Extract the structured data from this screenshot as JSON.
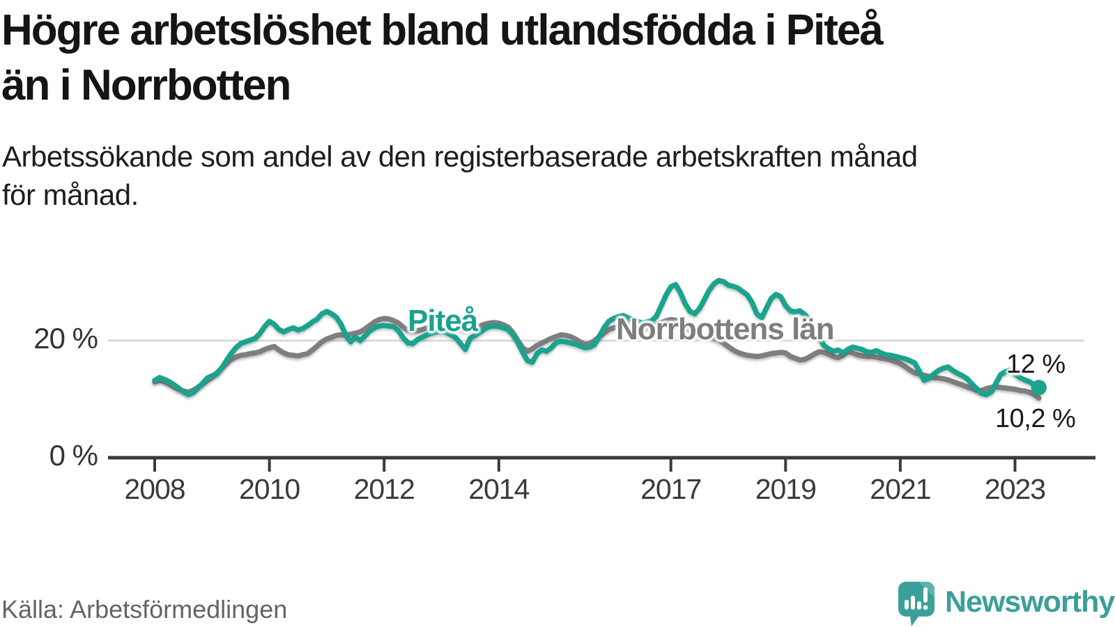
{
  "header": {
    "title_line1": "Högre arbetslöshet bland utlandsfödda i Piteå",
    "title_line2": "än i Norrbotten",
    "subtitle_line1": "Arbetssökande som andel av den registerbaserade arbetskraften månad",
    "subtitle_line2": "för månad."
  },
  "chart_data": {
    "type": "line",
    "title": "Högre arbetslöshet bland utlandsfödda i Piteå än i Norrbotten",
    "subtitle": "Arbetssökande som andel av den registerbaserade arbetskraften månad för månad.",
    "x_unit": "month",
    "x_start": "2008-01",
    "x_end": "2023-06",
    "ylim": [
      0,
      34
    ],
    "grid": "single-line-at-20",
    "yticks": [
      {
        "value": 0,
        "label": "0 %"
      },
      {
        "value": 20,
        "label": "20 %"
      }
    ],
    "xticks": [
      {
        "year": 2008,
        "label": "2008"
      },
      {
        "year": 2010,
        "label": "2010"
      },
      {
        "year": 2012,
        "label": "2012"
      },
      {
        "year": 2014,
        "label": "2014"
      },
      {
        "year": 2017,
        "label": "2017"
      },
      {
        "year": 2019,
        "label": "2019"
      },
      {
        "year": 2021,
        "label": "2021"
      },
      {
        "year": 2023,
        "label": "2023"
      }
    ],
    "series": [
      {
        "name": "Norrbottens län",
        "color": "#7E7E7E",
        "end_value_label": "10,2 %",
        "values": [
          13.0,
          13.2,
          13.0,
          12.6,
          12.1,
          11.7,
          11.4,
          11.2,
          11.5,
          12.0,
          12.6,
          13.2,
          13.8,
          14.5,
          15.3,
          16.1,
          16.8,
          17.2,
          17.5,
          17.6,
          17.8,
          17.9,
          18.1,
          18.5,
          18.8,
          19.0,
          18.4,
          17.9,
          17.6,
          17.5,
          17.4,
          17.6,
          17.8,
          18.4,
          19.1,
          19.8,
          20.3,
          20.6,
          20.9,
          21.0,
          21.0,
          21.1,
          21.3,
          21.5,
          22.0,
          22.6,
          23.2,
          23.6,
          23.8,
          23.7,
          23.4,
          23.0,
          22.3,
          21.8,
          21.6,
          21.7,
          21.9,
          22.2,
          22.4,
          22.6,
          22.8,
          22.9,
          22.7,
          22.4,
          22.1,
          21.8,
          21.9,
          22.2,
          22.5,
          22.8,
          23.0,
          23.1,
          23.0,
          22.7,
          22.3,
          21.3,
          20.0,
          18.8,
          18.2,
          18.6,
          19.2,
          19.6,
          20.0,
          20.4,
          20.7,
          21.0,
          20.9,
          20.7,
          20.3,
          19.8,
          19.4,
          19.5,
          20.0,
          20.7,
          21.3,
          21.9,
          22.2,
          22.4,
          22.8,
          23.0,
          22.9,
          22.7,
          22.4,
          22.3,
          22.5,
          22.8,
          23.1,
          23.4,
          23.6,
          23.5,
          23.0,
          22.4,
          21.8,
          21.3,
          20.9,
          20.7,
          20.6,
          20.4,
          20.1,
          19.6,
          19.0,
          18.4,
          18.0,
          17.7,
          17.5,
          17.4,
          17.3,
          17.4,
          17.6,
          17.8,
          17.9,
          18.0,
          17.9,
          17.3,
          17.0,
          16.7,
          16.8,
          17.2,
          17.7,
          18.1,
          18.0,
          17.7,
          17.3,
          17.1,
          17.5,
          18.1,
          17.9,
          17.6,
          17.4,
          17.3,
          17.3,
          17.2,
          17.0,
          16.9,
          16.7,
          16.4,
          16.1,
          15.6,
          15.0,
          14.5,
          14.3,
          14.1,
          13.9,
          13.7,
          13.6,
          13.5,
          13.3,
          13.0,
          12.7,
          12.4,
          12.1,
          11.8,
          11.5,
          11.5,
          11.8,
          12.0,
          12.1,
          12.0,
          11.9,
          11.8,
          11.7,
          11.5,
          11.4,
          11.2,
          10.8,
          10.2
        ]
      },
      {
        "name": "Piteå",
        "color": "#1AA38D",
        "end_value_label": "12 %",
        "end_dot": true,
        "values": [
          13.2,
          13.7,
          13.4,
          13.0,
          12.5,
          11.9,
          11.3,
          10.8,
          11.1,
          11.9,
          12.7,
          13.6,
          14.0,
          14.3,
          15.3,
          16.6,
          17.8,
          18.8,
          19.5,
          19.8,
          20.1,
          20.4,
          21.2,
          22.4,
          23.3,
          22.8,
          21.9,
          21.5,
          21.9,
          22.2,
          21.8,
          22.1,
          22.6,
          23.2,
          23.7,
          24.6,
          25.0,
          24.6,
          24.0,
          22.8,
          20.9,
          19.8,
          20.6,
          20.0,
          20.8,
          21.7,
          22.2,
          22.5,
          22.6,
          22.5,
          22.4,
          21.7,
          20.5,
          19.6,
          19.5,
          20.2,
          20.6,
          21.0,
          21.3,
          21.5,
          21.6,
          21.4,
          21.0,
          20.5,
          19.5,
          18.5,
          20.4,
          20.9,
          21.4,
          22.0,
          22.4,
          22.5,
          22.4,
          22.2,
          21.9,
          21.0,
          19.7,
          18.0,
          16.6,
          16.3,
          17.8,
          18.4,
          18.2,
          18.8,
          19.7,
          19.9,
          19.8,
          19.6,
          19.4,
          19.1,
          18.8,
          18.9,
          19.3,
          20.7,
          22.2,
          23.3,
          23.8,
          24.1,
          24.3,
          23.9,
          23.7,
          23.3,
          23.0,
          23.2,
          23.4,
          24.2,
          26.0,
          27.8,
          29.2,
          29.6,
          28.2,
          26.3,
          25.0,
          24.6,
          25.5,
          27.0,
          28.6,
          29.7,
          30.3,
          30.1,
          29.5,
          29.3,
          29.0,
          28.4,
          27.8,
          26.5,
          24.6,
          23.9,
          25.6,
          27.2,
          27.9,
          27.5,
          26.0,
          25.1,
          24.9,
          25.1,
          24.5,
          23.6,
          22.0,
          20.5,
          19.2,
          18.6,
          18.2,
          18.4,
          17.9,
          18.5,
          18.9,
          18.7,
          18.5,
          18.1,
          18.0,
          18.3,
          17.9,
          17.6,
          17.5,
          17.3,
          17.1,
          16.9,
          16.6,
          16.2,
          14.8,
          13.2,
          13.6,
          14.3,
          14.9,
          15.3,
          15.5,
          14.9,
          14.4,
          14.0,
          13.5,
          12.6,
          11.8,
          11.0,
          10.8,
          11.2,
          12.7,
          14.2,
          14.7,
          15.0,
          14.3,
          13.7,
          13.3,
          13.0,
          12.5,
          12.0
        ]
      }
    ],
    "end_labels": {
      "pitea": "12 %",
      "norrbotten": "10,2 %"
    }
  },
  "footer": {
    "source": "Källa: Arbetsförmedlingen",
    "brand": "Newsworthy"
  }
}
